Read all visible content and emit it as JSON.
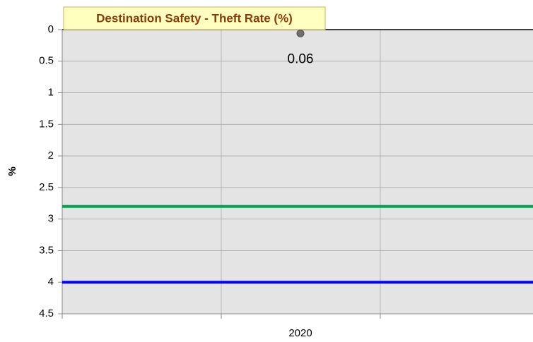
{
  "chart_data": {
    "type": "line",
    "title": "Destination Safety - Theft Rate (%)",
    "y_label": "%",
    "categories": [
      "2020"
    ],
    "values": [
      0.06
    ],
    "color": "#707070",
    "ylim": [
      0,
      4.5
    ],
    "yticks": [
      0,
      0.5,
      1,
      1.5,
      2,
      2.5,
      3,
      3.5,
      4,
      4.5
    ],
    "y_inverted": true,
    "grid": true,
    "reference_lines": [
      {
        "value": 2.8,
        "color": "#00a550"
      },
      {
        "value": 4,
        "color": "#0000ff"
      }
    ]
  }
}
